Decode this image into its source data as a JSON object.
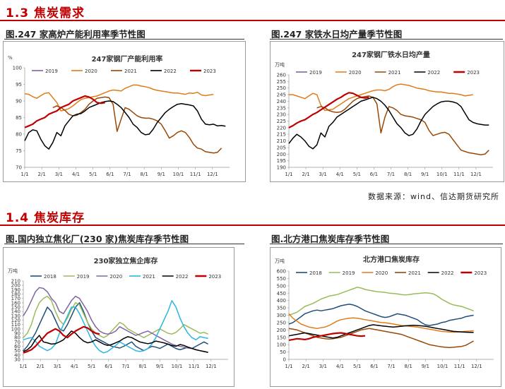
{
  "section1": {
    "title": "1.3 焦炭需求"
  },
  "section2": {
    "title": "1.4 焦炭库存"
  },
  "source": "数据来源：wind、信达期货研究所",
  "figures": [
    {
      "caption": "图.247 家高炉产能利用率季节性图"
    },
    {
      "caption": "图.247 家铁水日均产量季节性图"
    },
    {
      "caption": "图.国内独立焦化厂(230 家)焦炭库存季节性图"
    },
    {
      "caption": "图.北方港口焦炭库存季节性图"
    }
  ],
  "colors": {
    "2018": "#1f4e79",
    "2019": "#9bbb59",
    "2020": "#e07b1a",
    "2021": "#984806",
    "2022": "#000000",
    "2023": "#c00000",
    "2019b": "#8064a2",
    "2021b": "#2cb6e0"
  },
  "chart_data": [
    {
      "type": "line",
      "title": "247家钢厂产能利用率",
      "unit": "%",
      "ylim": [
        70,
        100
      ],
      "yticks": [
        70,
        75,
        80,
        85,
        90,
        95,
        100
      ],
      "xticks": [
        "1/1",
        "2/1",
        "3/1",
        "4/1",
        "5/1",
        "6/1",
        "7/1",
        "8/1",
        "9/1",
        "10/1",
        "11/1",
        "12/1"
      ],
      "series": [
        {
          "name": "2019",
          "color": "#8064a2",
          "values": []
        },
        {
          "name": "2020",
          "color": "#e07b1a",
          "values": [
            92.2,
            92.0,
            91.3,
            90.8,
            91.6,
            92.3,
            92.5,
            91.0,
            89.5,
            87.0,
            87.3,
            87.7,
            88.5,
            89.5,
            90.4,
            90.8,
            91.0,
            91.3,
            91.5,
            92.0,
            92.5,
            93.0,
            93.3,
            93.2,
            93.0,
            93.8,
            94.3,
            94.8,
            94.8,
            94.5,
            94.3,
            94.0,
            93.5,
            93.2,
            93.0,
            92.8,
            92.6,
            92.4,
            92.4,
            92.2,
            92.0,
            92.4,
            92.3,
            92.6,
            91.8,
            91.6,
            91.8,
            92.0
          ]
        },
        {
          "name": "2021",
          "color": "#984806",
          "values": [
            null,
            null,
            null,
            null,
            null,
            null,
            null,
            88.0,
            88.5,
            88.0,
            87.2,
            86.0,
            85.5,
            85.7,
            86.5,
            87.5,
            89.0,
            90.0,
            90.8,
            91.0,
            91.2,
            91.0,
            89.0,
            80.8,
            84.5,
            88.0,
            87.5,
            86.5,
            85.5,
            85.0,
            84.8,
            84.8,
            84.5,
            84.0,
            83.0,
            81.0,
            78.8,
            79.5,
            80.5,
            81.0,
            80.5,
            79.0,
            77.0,
            75.8,
            75.5,
            74.7,
            74.5,
            74.3,
            74.5,
            75.8
          ]
        },
        {
          "name": "2022",
          "color": "#000000",
          "values": [
            78.0,
            80.5,
            81.3,
            81.0,
            78.5,
            76.5,
            75.5,
            77.5,
            80.5,
            79.5,
            82.5,
            84.0,
            85.5,
            86.0,
            86.2,
            87.0,
            88.0,
            88.5,
            89.0,
            89.5,
            89.8,
            90.0,
            89.8,
            89.0,
            88.0,
            86.5,
            85.0,
            83.0,
            82.0,
            80.5,
            79.8,
            80.0,
            81.5,
            83.5,
            85.0,
            86.5,
            87.5,
            88.3,
            89.0,
            89.2,
            89.0,
            88.8,
            88.5,
            87.0,
            84.5,
            83.0,
            82.8,
            83.0,
            82.5,
            82.6,
            82.4
          ]
        },
        {
          "name": "2023",
          "color": "#c00000",
          "values": [
            82.0,
            82.5,
            83.0,
            84.0,
            84.5,
            85.0,
            86.0,
            86.5,
            87.0,
            88.0,
            88.5,
            89.0,
            90.0,
            90.5,
            91.0,
            91.5,
            91.2,
            90.5,
            89.5,
            89.3,
            89.5
          ]
        }
      ]
    },
    {
      "type": "line",
      "title": "247家钢厂铁水日均产量",
      "unit": "万吨",
      "ylim": [
        190,
        260
      ],
      "yticks": [
        190,
        195,
        200,
        205,
        210,
        215,
        220,
        225,
        230,
        235,
        240,
        245,
        250,
        255,
        260
      ],
      "xticks": [
        "1/1",
        "2/1",
        "3/1",
        "4/1",
        "5/1",
        "6/1",
        "7/1",
        "8/1",
        "9/1",
        "10/1",
        "11/1",
        "12/1"
      ],
      "series": [
        {
          "name": "2019",
          "color": "#8064a2",
          "values": []
        },
        {
          "name": "2020",
          "color": "#e07b1a",
          "values": [
            245.0,
            245.0,
            244.0,
            243.0,
            242.0,
            244.0,
            246.0,
            245.0,
            237.0,
            233.0,
            233.5,
            234.0,
            236.0,
            238.0,
            240.0,
            242.0,
            243.0,
            244.0,
            245.0,
            246.0,
            247.0,
            248.0,
            248.5,
            248.5,
            248.0,
            249.0,
            251.0,
            252.5,
            253.0,
            252.5,
            252.0,
            251.0,
            250.0,
            249.5,
            249.0,
            248.0,
            247.5,
            247.0,
            247.0,
            246.5,
            246.0,
            246.0,
            245.5,
            245.0,
            244.0,
            244.5,
            245.0
          ]
        },
        {
          "name": "2021",
          "color": "#984806",
          "values": [
            null,
            null,
            null,
            null,
            null,
            null,
            null,
            235.0,
            236.0,
            235.0,
            233.0,
            232.0,
            231.5,
            232.0,
            234.0,
            237.0,
            240.0,
            242.0,
            243.0,
            243.5,
            244.0,
            243.0,
            238.0,
            216.0,
            228.0,
            236.0,
            235.0,
            233.0,
            230.0,
            229.0,
            228.5,
            228.0,
            227.0,
            226.0,
            224.0,
            218.0,
            214.0,
            215.0,
            216.0,
            216.5,
            215.0,
            211.0,
            207.0,
            203.0,
            202.0,
            201.0,
            200.5,
            200.0,
            199.5,
            200.0,
            203.0
          ]
        },
        {
          "name": "2022",
          "color": "#000000",
          "values": [
            208.0,
            212.0,
            215.0,
            213.0,
            210.0,
            206.0,
            204.0,
            207.0,
            216.0,
            213.0,
            221.0,
            224.0,
            228.0,
            230.0,
            232.0,
            234.0,
            236.0,
            238.0,
            240.0,
            241.0,
            242.0,
            243.0,
            242.0,
            240.0,
            237.0,
            233.0,
            228.0,
            223.0,
            220.0,
            216.0,
            214.0,
            215.0,
            219.0,
            225.0,
            230.0,
            233.0,
            236.0,
            238.0,
            239.5,
            240.0,
            240.0,
            239.5,
            238.5,
            236.0,
            231.0,
            226.0,
            224.0,
            223.0,
            222.5,
            222.0,
            222.0
          ]
        },
        {
          "name": "2023",
          "color": "#c00000",
          "values": [
            220.0,
            221.5,
            223.5,
            225.0,
            226.0,
            228.0,
            230.0,
            231.5,
            233.5,
            235.5,
            237.5,
            239.5,
            241.5,
            243.0,
            245.0,
            246.5,
            246.0,
            244.5,
            243.0,
            242.5,
            243.0
          ]
        }
      ]
    },
    {
      "type": "line",
      "title": "230家独立焦企库存",
      "unit": "万吨",
      "ylim": [
        30,
        210
      ],
      "yticks": [
        30,
        40,
        50,
        60,
        70,
        80,
        90,
        100,
        110,
        120,
        130,
        140,
        150,
        160,
        170,
        180,
        190,
        200,
        210
      ],
      "xticks": [
        "1/1",
        "2/1",
        "3/1",
        "4/1",
        "5/1",
        "6/1",
        "7/1",
        "8/1",
        "9/1",
        "10/1",
        "11/1",
        "12/1"
      ],
      "series": [
        {
          "name": "2018",
          "color": "#1f4e79",
          "values": [
            50,
            60,
            75,
            90,
            110,
            130,
            150,
            140,
            120,
            100,
            95,
            110,
            130,
            150,
            160,
            140,
            115,
            95,
            80,
            75,
            70,
            65,
            60,
            58,
            56,
            60,
            65,
            70,
            60,
            55,
            50,
            55,
            60,
            58,
            55,
            60,
            65,
            60,
            55,
            52,
            55,
            58,
            55,
            60,
            65,
            70,
            65
          ]
        },
        {
          "name": "2019",
          "color": "#9bbb59",
          "values": [
            80,
            90,
            110,
            140,
            160,
            170,
            175,
            165,
            140,
            120,
            110,
            125,
            145,
            160,
            155,
            135,
            115,
            100,
            90,
            85,
            80,
            85,
            95,
            105,
            115,
            110,
            100,
            95,
            90,
            85,
            80,
            85,
            90,
            95,
            100,
            95,
            90,
            88,
            92,
            100,
            110,
            105,
            100,
            95,
            90,
            92,
            88
          ]
        },
        {
          "name": "2020",
          "color": "#8064a2",
          "values": [
            130,
            145,
            165,
            185,
            195,
            193,
            185,
            170,
            160,
            140,
            135,
            150,
            165,
            175,
            170,
            155,
            140,
            120,
            105,
            95,
            90,
            88,
            90,
            95,
            105,
            100,
            95,
            90,
            85,
            88,
            92,
            95,
            90,
            85,
            80,
            75,
            70,
            65,
            62,
            60,
            58,
            56,
            55,
            52,
            50,
            48,
            46
          ]
        },
        {
          "name": "2021",
          "color": "#2cb6e0",
          "values": [
            75,
            78,
            80,
            72,
            60,
            55,
            50,
            55,
            65,
            90,
            110,
            130,
            150,
            150,
            135,
            115,
            95,
            75,
            60,
            50,
            45,
            48,
            55,
            62,
            70,
            65,
            60,
            55,
            50,
            48,
            50,
            55,
            65,
            80,
            100,
            120,
            140,
            165,
            150,
            125,
            105,
            90,
            80,
            75,
            82,
            80,
            78
          ]
        },
        {
          "name": "2022",
          "color": "#000000",
          "values": [
            48,
            52,
            60,
            75,
            85,
            70,
            68,
            65,
            66,
            70,
            75,
            85,
            95,
            90,
            80,
            72,
            68,
            70,
            75,
            70,
            65,
            62,
            64,
            68,
            72,
            78,
            82,
            80,
            75,
            70,
            68,
            66,
            68,
            72,
            70,
            68,
            65,
            62,
            60,
            64,
            62,
            58,
            55,
            52,
            50,
            48,
            46
          ]
        },
        {
          "name": "2023",
          "color": "#c00000",
          "values": [
            45,
            48,
            52,
            60,
            70,
            80,
            90,
            95,
            100,
            95,
            85,
            80,
            88,
            95,
            100,
            105,
            102,
            95,
            90,
            88
          ]
        }
      ]
    },
    {
      "type": "line",
      "title": "北方港口焦炭库存",
      "unit": "万吨",
      "ylim": [
        0,
        600
      ],
      "yticks": [
        0,
        50,
        100,
        150,
        200,
        250,
        300,
        350,
        400,
        450,
        500,
        550,
        600
      ],
      "xticks": [
        "1/1",
        "2/1",
        "3/1",
        "4/1",
        "5/1",
        "6/1",
        "7/1",
        "8/1",
        "9/1",
        "10/1",
        "11/1",
        "12/1"
      ],
      "series": [
        {
          "name": "2018",
          "color": "#1f4e79",
          "values": [
            240,
            250,
            270,
            290,
            310,
            320,
            330,
            335,
            330,
            335,
            340,
            345,
            355,
            365,
            370,
            375,
            370,
            360,
            345,
            330,
            320,
            310,
            300,
            290,
            285,
            290,
            300,
            310,
            305,
            300,
            290,
            280,
            270,
            250,
            235,
            230,
            235,
            240,
            250,
            255,
            265,
            270,
            275,
            280,
            290,
            295,
            300
          ]
        },
        {
          "name": "2019",
          "color": "#9bbb59",
          "values": [
            300,
            310,
            320,
            340,
            360,
            370,
            380,
            395,
            410,
            420,
            430,
            435,
            440,
            450,
            460,
            470,
            480,
            490,
            485,
            475,
            470,
            465,
            460,
            458,
            455,
            450,
            448,
            445,
            440,
            438,
            440,
            445,
            448,
            450,
            452,
            450,
            445,
            430,
            410,
            395,
            380,
            370,
            365,
            360,
            350,
            340,
            330
          ]
        },
        {
          "name": "2020",
          "color": "#e07b1a",
          "values": [
            310,
            280,
            260,
            240,
            230,
            220,
            215,
            210,
            215,
            220,
            230,
            245,
            260,
            270,
            275,
            280,
            282,
            280,
            275,
            270,
            265,
            260,
            255,
            250,
            248,
            245,
            240,
            235,
            230,
            228,
            225,
            222,
            220,
            215,
            210,
            205,
            200,
            195,
            190,
            188,
            186,
            185,
            186,
            188,
            190,
            192,
            195
          ]
        },
        {
          "name": "2021",
          "color": "#984806",
          "values": [
            210,
            205,
            200,
            190,
            180,
            170,
            160,
            150,
            145,
            140,
            138,
            140,
            145,
            150,
            160,
            170,
            180,
            190,
            200,
            205,
            210,
            205,
            200,
            195,
            190,
            185,
            180,
            175,
            170,
            160,
            150,
            140,
            130,
            120,
            110,
            100,
            95,
            90,
            85,
            82,
            80,
            82,
            85,
            88,
            95,
            110,
            125
          ]
        },
        {
          "name": "2022",
          "color": "#000000",
          "values": [
            160,
            165,
            170,
            175,
            180,
            175,
            170,
            165,
            160,
            155,
            150,
            145,
            150,
            160,
            170,
            180,
            190,
            200,
            210,
            220,
            230,
            235,
            232,
            228,
            225,
            222,
            220,
            222,
            225,
            228,
            230,
            232,
            230,
            228,
            225,
            220,
            215,
            210,
            205,
            200,
            195,
            190,
            188,
            186,
            185,
            184,
            183
          ]
        },
        {
          "name": "2023",
          "color": "#c00000",
          "values": [
            130,
            135,
            140,
            138,
            135,
            140,
            150,
            155,
            160,
            165,
            170,
            175,
            178,
            180,
            175,
            170,
            165,
            160,
            158,
            160
          ]
        }
      ]
    }
  ]
}
